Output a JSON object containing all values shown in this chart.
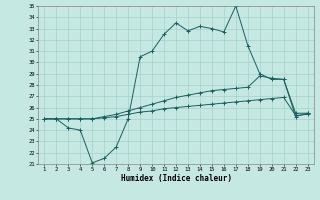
{
  "xlabel": "Humidex (Indice chaleur)",
  "background_color": "#c5e8e3",
  "grid_color": "#9fccc6",
  "line_color": "#1a5f5f",
  "xlim": [
    0.5,
    23.5
  ],
  "ylim": [
    21,
    35
  ],
  "yticks": [
    21,
    22,
    23,
    24,
    25,
    26,
    27,
    28,
    29,
    30,
    31,
    32,
    33,
    34,
    35
  ],
  "xticks": [
    1,
    2,
    3,
    4,
    5,
    6,
    7,
    8,
    9,
    10,
    11,
    12,
    13,
    14,
    15,
    16,
    17,
    18,
    19,
    20,
    21,
    22,
    23
  ],
  "x": [
    1,
    2,
    3,
    4,
    5,
    6,
    7,
    8,
    9,
    10,
    11,
    12,
    13,
    14,
    15,
    16,
    17,
    18,
    19,
    20,
    21,
    22,
    23
  ],
  "line1_main": [
    25.0,
    25.0,
    24.2,
    24.0,
    21.1,
    21.5,
    22.5,
    25.0,
    30.5,
    31.0,
    32.5,
    33.5,
    32.8,
    33.2,
    33.0,
    32.7,
    35.0,
    31.5,
    29.0,
    28.5,
    28.5,
    25.2,
    25.5
  ],
  "line2_upper": [
    25.0,
    25.0,
    25.0,
    25.0,
    25.0,
    25.2,
    25.4,
    25.7,
    26.0,
    26.3,
    26.6,
    26.9,
    27.1,
    27.3,
    27.5,
    27.6,
    27.7,
    27.8,
    28.8,
    28.6,
    28.5,
    25.5,
    25.5
  ],
  "line3_lower": [
    25.0,
    25.0,
    25.0,
    25.0,
    25.0,
    25.1,
    25.2,
    25.4,
    25.6,
    25.7,
    25.9,
    26.0,
    26.1,
    26.2,
    26.3,
    26.4,
    26.5,
    26.6,
    26.7,
    26.8,
    26.9,
    25.3,
    25.4
  ]
}
